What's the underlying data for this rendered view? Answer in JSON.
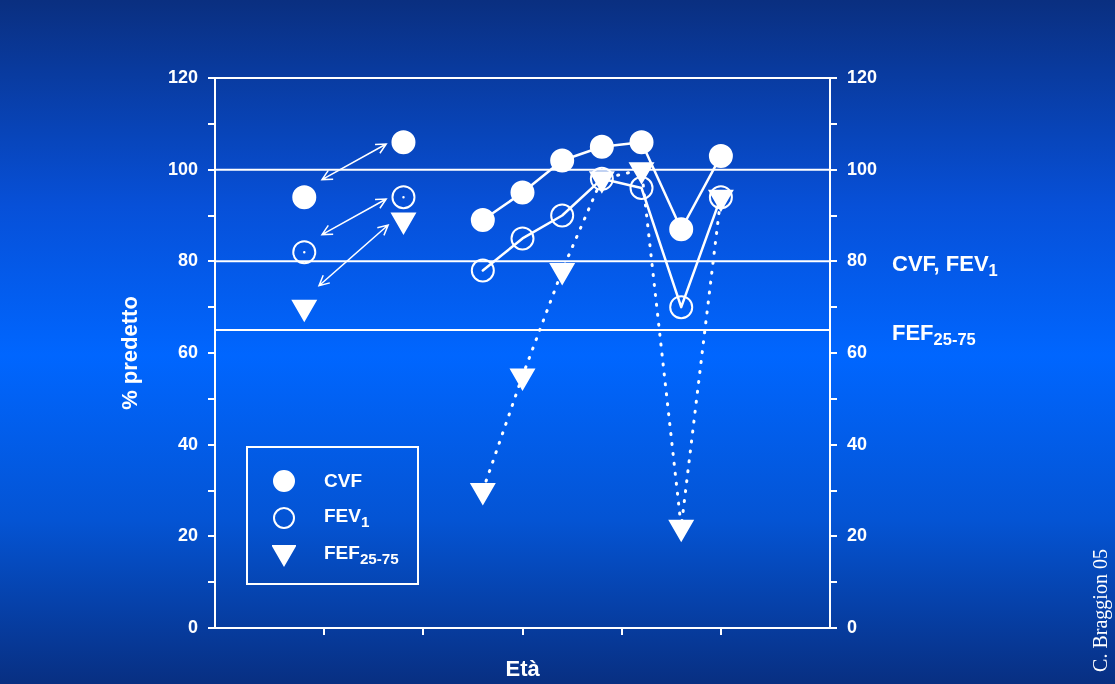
{
  "chart_data": {
    "type": "line",
    "xlabel": "Età",
    "ylabel": "% predetto",
    "categories": [
      null,
      null,
      null,
      null,
      null,
      null,
      null,
      null,
      null,
      null,
      null,
      null,
      null,
      null,
      null,
      null,
      null,
      null,
      null,
      null,
      null,
      null,
      null,
      null,
      null,
      null,
      null,
      null,
      null,
      null,
      null
    ],
    "ylim": [
      0,
      120
    ],
    "yticks": [
      0,
      {
        "value": 10,
        "label": null
      },
      20,
      {
        "value": 30,
        "label": null
      },
      40,
      {
        "value": 50,
        "label": null
      },
      60,
      {
        "value": 70,
        "label": null
      },
      80,
      {
        "value": 90,
        "label": null
      },
      100,
      {
        "value": 110,
        "label": null
      },
      120
    ],
    "y2lim": [
      0,
      120
    ],
    "y2ticks": [
      0,
      {
        "value": 10,
        "label": null
      },
      20,
      {
        "value": 30,
        "label": null
      },
      40,
      {
        "value": 50,
        "label": null
      },
      60,
      {
        "value": 70,
        "label": null
      },
      80,
      {
        "value": 90,
        "label": null
      },
      100,
      {
        "value": 110,
        "label": null
      },
      120
    ],
    "tick_labels": "y",
    "legend": "bottom left",
    "series": [
      {
        "name": "CVF",
        "color": "#ffffff",
        "marker": "circle",
        "line_style": "solid",
        "values": [
          null,
          null,
          null,
          null,
          94,
          null,
          null,
          null,
          null,
          106,
          null,
          null,
          null,
          89,
          null,
          95,
          null,
          102,
          null,
          105,
          null,
          106,
          null,
          87,
          null,
          103,
          null,
          null,
          null,
          null,
          null
        ]
      },
      {
        "name": "FEV$_{1}$",
        "color": "#ffffff",
        "marker": "circle-open",
        "line_style": "solid",
        "values": [
          null,
          null,
          null,
          null,
          82,
          null,
          null,
          null,
          null,
          94,
          null,
          null,
          null,
          78,
          null,
          85,
          null,
          90,
          null,
          98,
          null,
          96,
          null,
          70,
          null,
          94,
          null,
          null,
          null,
          null,
          null
        ]
      },
      {
        "name": "FEF$_{25-75}$",
        "color": "#ffffff",
        "marker": "triangle",
        "line_style": "dotted",
        "values": [
          null,
          null,
          null,
          null,
          70,
          null,
          null,
          null,
          null,
          89,
          null,
          null,
          null,
          30,
          null,
          55,
          null,
          78,
          null,
          98,
          null,
          100,
          null,
          22,
          null,
          94,
          null,
          null,
          null,
          null,
          null
        ]
      }
    ],
    "ref_lines": [
      {
        "axis": "y",
        "value": 100,
        "color": "#ffffff"
      },
      {
        "axis": "y",
        "value": 80,
        "label": "CVF, FEV$_{1}$",
        "color": "#ffffff"
      },
      {
        "axis": "y",
        "value": 65,
        "label": "FEF$_{25-75}$",
        "color": "#ffffff"
      }
    ],
    "annotations": [
      "C. Braggion 05"
    ]
  }
}
